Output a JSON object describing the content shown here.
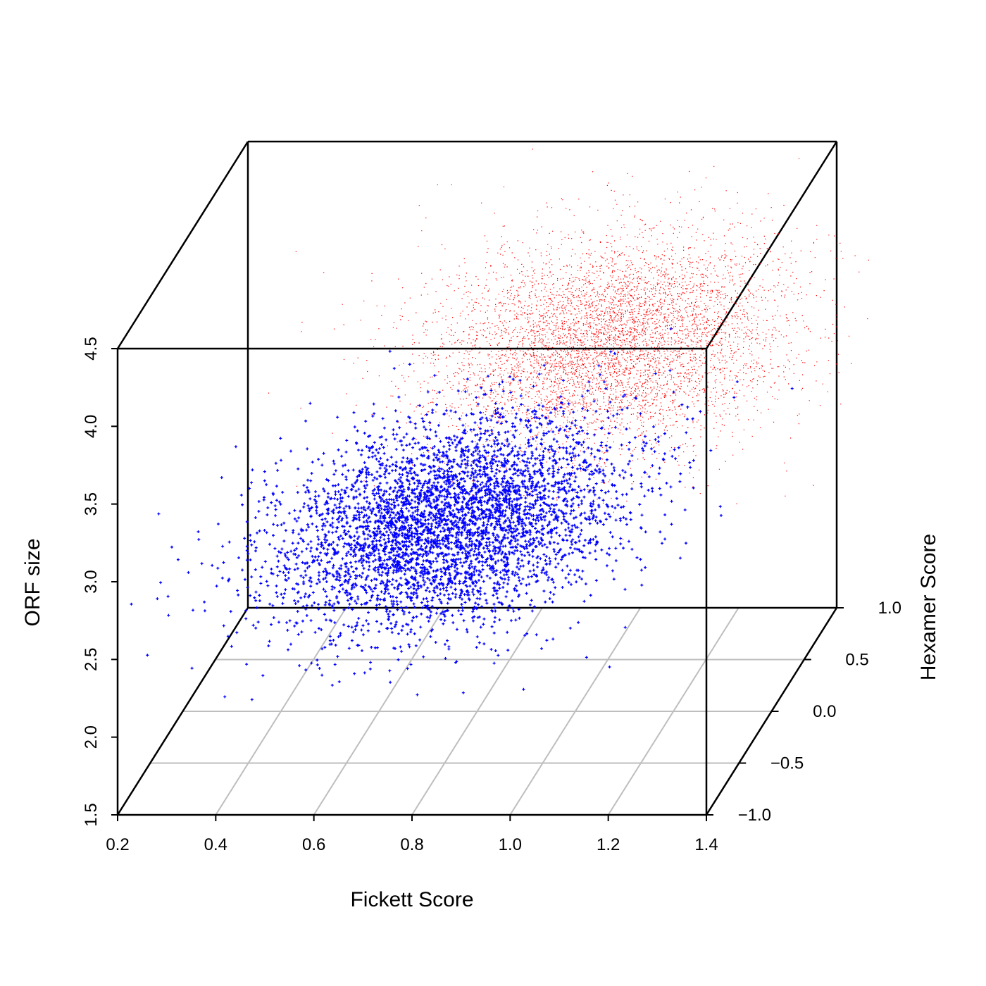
{
  "chart_data": {
    "type": "scatter",
    "subtype": "3d-scatter",
    "title": "",
    "xlabel": "Fickett Score",
    "ylabel": "Hexamer Score",
    "zlabel": "ORF size",
    "xlim": [
      0.2,
      1.4
    ],
    "ylim": [
      -1.0,
      1.0
    ],
    "zlim": [
      1.5,
      4.5
    ],
    "xticks": [
      "0.2",
      "0.4",
      "0.6",
      "0.8",
      "1.0",
      "1.2",
      "1.4"
    ],
    "yticks": [
      "−1.0",
      "−0.5",
      "0.0",
      "0.5",
      "1.0"
    ],
    "zticks": [
      "1.5",
      "2.0",
      "2.5",
      "3.0",
      "3.5",
      "4.0",
      "4.5"
    ],
    "grid": true,
    "legend": "none",
    "series": [
      {
        "color": "#ff0000",
        "marker": "dot",
        "approx_count": 12000,
        "distribution": {
          "fickett_center": 1.0,
          "fickett_spread": 0.18,
          "hexamer_center": 0.55,
          "hexamer_spread": 0.25,
          "orf_center": 3.5,
          "orf_spread": 0.3
        },
        "sample_points": [
          [
            0.9,
            0.6,
            3.7
          ],
          [
            1.05,
            0.5,
            3.4
          ],
          [
            1.2,
            0.8,
            3.6
          ],
          [
            0.8,
            0.4,
            3.5
          ],
          [
            1.3,
            0.6,
            3.2
          ],
          [
            0.7,
            0.3,
            3.8
          ],
          [
            1.1,
            0.7,
            4.1
          ],
          [
            1.0,
            0.2,
            3.3
          ],
          [
            0.95,
            0.9,
            3.6
          ]
        ]
      },
      {
        "color": "#0000ff",
        "marker": "plus",
        "approx_count": 9000,
        "distribution": {
          "fickett_center": 0.75,
          "fickett_spread": 0.17,
          "hexamer_center": -0.05,
          "hexamer_spread": 0.4,
          "orf_center": 2.75,
          "orf_spread": 0.22
        },
        "sample_points": [
          [
            0.7,
            0.0,
            2.8
          ],
          [
            0.8,
            -0.2,
            2.7
          ],
          [
            0.6,
            0.3,
            2.9
          ],
          [
            0.9,
            -0.4,
            2.6
          ],
          [
            0.75,
            0.5,
            3.0
          ],
          [
            0.55,
            -0.6,
            2.5
          ],
          [
            1.0,
            0.1,
            2.8
          ],
          [
            0.65,
            0.6,
            3.1
          ],
          [
            0.85,
            -0.8,
            2.4
          ]
        ]
      }
    ]
  }
}
